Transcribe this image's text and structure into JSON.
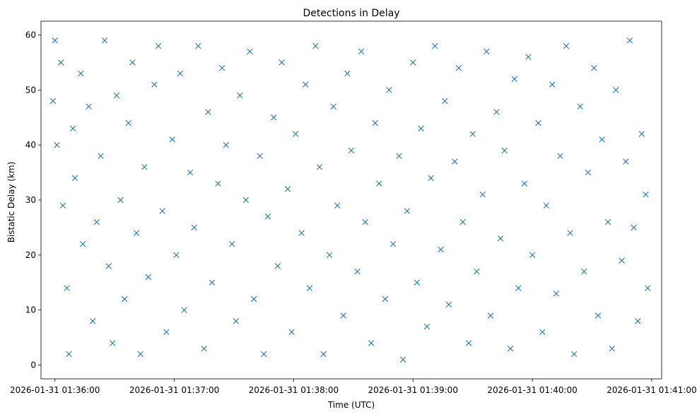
{
  "chart_data": {
    "type": "scatter",
    "title": "Detections in Delay",
    "xlabel": "Time (UTC)",
    "ylabel": "Bistatic Delay (km)",
    "x_tick_labels": [
      "2026-01-31 01:36:00",
      "2026-01-31 01:37:00",
      "2026-01-31 01:38:00",
      "2026-01-31 01:39:00",
      "2026-01-31 01:40:00",
      "2026-01-31 01:41:00"
    ],
    "y_tick_labels": [
      "0",
      "10",
      "20",
      "30",
      "40",
      "50",
      "60"
    ],
    "xlim": [
      "2026-01-31 01:35:53",
      "2026-01-31 01:41:05"
    ],
    "ylim": [
      -2.5,
      62.5
    ],
    "x_range": [
      "2026-01-31 01:35:58",
      "2026-01-31 01:40:59"
    ],
    "y_range": [
      1,
      60
    ],
    "marker": "x",
    "color": "#1f77b4",
    "grid": false,
    "legend": "none",
    "series": [
      {
        "values": [
          [
            "2026-01-31 01:35:59",
            48
          ],
          [
            "2026-01-31 01:36:00",
            59
          ],
          [
            "2026-01-31 01:36:01",
            40
          ],
          [
            "2026-01-31 01:36:03",
            55
          ],
          [
            "2026-01-31 01:36:04",
            29
          ],
          [
            "2026-01-31 01:36:06",
            14
          ],
          [
            "2026-01-31 01:36:07",
            2
          ],
          [
            "2026-01-31 01:36:09",
            43
          ],
          [
            "2026-01-31 01:36:10",
            34
          ],
          [
            "2026-01-31 01:36:13",
            53
          ],
          [
            "2026-01-31 01:36:14",
            22
          ],
          [
            "2026-01-31 01:36:17",
            47
          ],
          [
            "2026-01-31 01:36:19",
            8
          ],
          [
            "2026-01-31 01:36:21",
            26
          ],
          [
            "2026-01-31 01:36:23",
            38
          ],
          [
            "2026-01-31 01:36:25",
            59
          ],
          [
            "2026-01-31 01:36:27",
            18
          ],
          [
            "2026-01-31 01:36:29",
            4
          ],
          [
            "2026-01-31 01:36:31",
            49
          ],
          [
            "2026-01-31 01:36:33",
            30
          ],
          [
            "2026-01-31 01:36:35",
            12
          ],
          [
            "2026-01-31 01:36:37",
            44
          ],
          [
            "2026-01-31 01:36:39",
            55
          ],
          [
            "2026-01-31 01:36:41",
            24
          ],
          [
            "2026-01-31 01:36:43",
            2
          ],
          [
            "2026-01-31 01:36:45",
            36
          ],
          [
            "2026-01-31 01:36:47",
            16
          ],
          [
            "2026-01-31 01:36:50",
            51
          ],
          [
            "2026-01-31 01:36:52",
            58
          ],
          [
            "2026-01-31 01:36:54",
            28
          ],
          [
            "2026-01-31 01:36:56",
            6
          ],
          [
            "2026-01-31 01:36:59",
            41
          ],
          [
            "2026-01-31 01:37:01",
            20
          ],
          [
            "2026-01-31 01:37:03",
            53
          ],
          [
            "2026-01-31 01:37:05",
            10
          ],
          [
            "2026-01-31 01:37:08",
            35
          ],
          [
            "2026-01-31 01:37:10",
            25
          ],
          [
            "2026-01-31 01:37:12",
            58
          ],
          [
            "2026-01-31 01:37:15",
            3
          ],
          [
            "2026-01-31 01:37:17",
            46
          ],
          [
            "2026-01-31 01:37:19",
            15
          ],
          [
            "2026-01-31 01:37:22",
            33
          ],
          [
            "2026-01-31 01:37:24",
            54
          ],
          [
            "2026-01-31 01:37:26",
            40
          ],
          [
            "2026-01-31 01:37:29",
            22
          ],
          [
            "2026-01-31 01:37:31",
            8
          ],
          [
            "2026-01-31 01:37:33",
            49
          ],
          [
            "2026-01-31 01:37:36",
            30
          ],
          [
            "2026-01-31 01:37:38",
            57
          ],
          [
            "2026-01-31 01:37:40",
            12
          ],
          [
            "2026-01-31 01:37:43",
            38
          ],
          [
            "2026-01-31 01:37:45",
            2
          ],
          [
            "2026-01-31 01:37:47",
            27
          ],
          [
            "2026-01-31 01:37:50",
            45
          ],
          [
            "2026-01-31 01:37:52",
            18
          ],
          [
            "2026-01-31 01:37:54",
            55
          ],
          [
            "2026-01-31 01:37:57",
            32
          ],
          [
            "2026-01-31 01:37:59",
            6
          ],
          [
            "2026-01-31 01:38:01",
            42
          ],
          [
            "2026-01-31 01:38:04",
            24
          ],
          [
            "2026-01-31 01:38:06",
            51
          ],
          [
            "2026-01-31 01:38:08",
            14
          ],
          [
            "2026-01-31 01:38:11",
            58
          ],
          [
            "2026-01-31 01:38:13",
            36
          ],
          [
            "2026-01-31 01:38:15",
            2
          ],
          [
            "2026-01-31 01:38:18",
            20
          ],
          [
            "2026-01-31 01:38:20",
            47
          ],
          [
            "2026-01-31 01:38:22",
            29
          ],
          [
            "2026-01-31 01:38:25",
            9
          ],
          [
            "2026-01-31 01:38:27",
            53
          ],
          [
            "2026-01-31 01:38:29",
            39
          ],
          [
            "2026-01-31 01:38:32",
            17
          ],
          [
            "2026-01-31 01:38:34",
            57
          ],
          [
            "2026-01-31 01:38:36",
            26
          ],
          [
            "2026-01-31 01:38:39",
            4
          ],
          [
            "2026-01-31 01:38:41",
            44
          ],
          [
            "2026-01-31 01:38:43",
            33
          ],
          [
            "2026-01-31 01:38:46",
            12
          ],
          [
            "2026-01-31 01:38:48",
            50
          ],
          [
            "2026-01-31 01:38:50",
            22
          ],
          [
            "2026-01-31 01:38:53",
            38
          ],
          [
            "2026-01-31 01:38:55",
            1
          ],
          [
            "2026-01-31 01:38:57",
            28
          ],
          [
            "2026-01-31 01:39:00",
            55
          ],
          [
            "2026-01-31 01:39:02",
            15
          ],
          [
            "2026-01-31 01:39:04",
            43
          ],
          [
            "2026-01-31 01:39:07",
            7
          ],
          [
            "2026-01-31 01:39:09",
            34
          ],
          [
            "2026-01-31 01:39:11",
            58
          ],
          [
            "2026-01-31 01:39:14",
            21
          ],
          [
            "2026-01-31 01:39:16",
            48
          ],
          [
            "2026-01-31 01:39:18",
            11
          ],
          [
            "2026-01-31 01:39:21",
            37
          ],
          [
            "2026-01-31 01:39:23",
            54
          ],
          [
            "2026-01-31 01:39:25",
            26
          ],
          [
            "2026-01-31 01:39:28",
            4
          ],
          [
            "2026-01-31 01:39:30",
            42
          ],
          [
            "2026-01-31 01:39:32",
            17
          ],
          [
            "2026-01-31 01:39:35",
            31
          ],
          [
            "2026-01-31 01:39:37",
            57
          ],
          [
            "2026-01-31 01:39:39",
            9
          ],
          [
            "2026-01-31 01:39:42",
            46
          ],
          [
            "2026-01-31 01:39:44",
            23
          ],
          [
            "2026-01-31 01:39:46",
            39
          ],
          [
            "2026-01-31 01:39:49",
            3
          ],
          [
            "2026-01-31 01:39:51",
            52
          ],
          [
            "2026-01-31 01:39:53",
            14
          ],
          [
            "2026-01-31 01:39:56",
            33
          ],
          [
            "2026-01-31 01:39:58",
            56
          ],
          [
            "2026-01-31 01:40:00",
            20
          ],
          [
            "2026-01-31 01:40:03",
            44
          ],
          [
            "2026-01-31 01:40:05",
            6
          ],
          [
            "2026-01-31 01:40:07",
            29
          ],
          [
            "2026-01-31 01:40:10",
            51
          ],
          [
            "2026-01-31 01:40:12",
            13
          ],
          [
            "2026-01-31 01:40:14",
            38
          ],
          [
            "2026-01-31 01:40:17",
            58
          ],
          [
            "2026-01-31 01:40:19",
            24
          ],
          [
            "2026-01-31 01:40:21",
            2
          ],
          [
            "2026-01-31 01:40:24",
            47
          ],
          [
            "2026-01-31 01:40:26",
            17
          ],
          [
            "2026-01-31 01:40:28",
            35
          ],
          [
            "2026-01-31 01:40:31",
            54
          ],
          [
            "2026-01-31 01:40:33",
            9
          ],
          [
            "2026-01-31 01:40:35",
            41
          ],
          [
            "2026-01-31 01:40:38",
            26
          ],
          [
            "2026-01-31 01:40:40",
            3
          ],
          [
            "2026-01-31 01:40:42",
            50
          ],
          [
            "2026-01-31 01:40:45",
            19
          ],
          [
            "2026-01-31 01:40:47",
            37
          ],
          [
            "2026-01-31 01:40:49",
            59
          ],
          [
            "2026-01-31 01:40:51",
            25
          ],
          [
            "2026-01-31 01:40:53",
            8
          ],
          [
            "2026-01-31 01:40:55",
            42
          ],
          [
            "2026-01-31 01:40:57",
            31
          ],
          [
            "2026-01-31 01:40:58",
            14
          ]
        ]
      }
    ]
  }
}
